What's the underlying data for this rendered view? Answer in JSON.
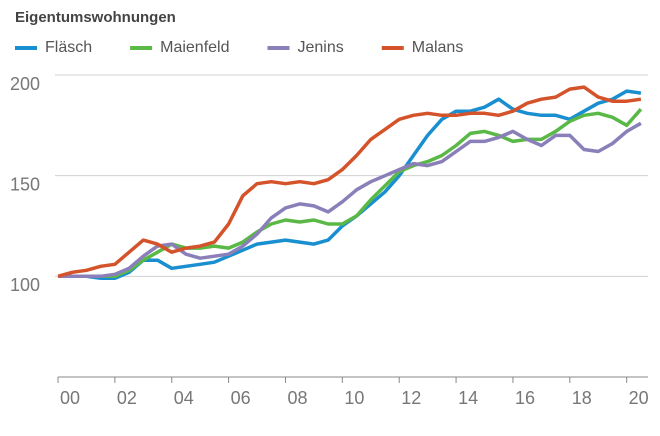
{
  "chart_data": {
    "type": "line",
    "title": "Eigentumswohnungen",
    "x": [
      2000,
      2000.5,
      2001,
      2001.5,
      2002,
      2002.5,
      2003,
      2003.5,
      2004,
      2004.5,
      2005,
      2005.5,
      2006,
      2006.5,
      2007,
      2007.5,
      2008,
      2008.5,
      2009,
      2009.5,
      2010,
      2010.5,
      2011,
      2011.5,
      2012,
      2012.5,
      2013,
      2013.5,
      2014,
      2014.5,
      2015,
      2015.5,
      2016,
      2016.5,
      2017,
      2017.5,
      2018,
      2018.5,
      2019,
      2019.5,
      2020,
      2020.5
    ],
    "series": [
      {
        "name": "Fläsch",
        "color": "#1a8fd0",
        "values": [
          100,
          100,
          100,
          99,
          99,
          102,
          108,
          108,
          104,
          105,
          106,
          107,
          110,
          113,
          116,
          117,
          118,
          117,
          116,
          118,
          125,
          130,
          136,
          142,
          150,
          160,
          170,
          178,
          182,
          182,
          184,
          188,
          183,
          181,
          180,
          180,
          178,
          182,
          186,
          188,
          192,
          191
        ]
      },
      {
        "name": "Maienfeld",
        "color": "#5ab946",
        "values": [
          100,
          100,
          100,
          100,
          100,
          103,
          108,
          112,
          116,
          114,
          114,
          115,
          114,
          117,
          122,
          126,
          128,
          127,
          128,
          126,
          126,
          130,
          138,
          145,
          152,
          155,
          157,
          160,
          165,
          171,
          172,
          170,
          167,
          168,
          168,
          172,
          177,
          180,
          181,
          179,
          175,
          183
        ]
      },
      {
        "name": "Jenins",
        "color": "#8a7fb8",
        "values": [
          100,
          100,
          100,
          100,
          101,
          104,
          110,
          115,
          116,
          111,
          109,
          110,
          111,
          115,
          121,
          129,
          134,
          136,
          135,
          132,
          137,
          143,
          147,
          150,
          153,
          156,
          155,
          157,
          162,
          167,
          167,
          169,
          172,
          168,
          165,
          170,
          170,
          163,
          162,
          166,
          172,
          176
        ]
      },
      {
        "name": "Malans",
        "color": "#d4532b",
        "values": [
          100,
          102,
          103,
          105,
          106,
          112,
          118,
          116,
          112,
          114,
          115,
          117,
          126,
          140,
          146,
          147,
          146,
          147,
          146,
          148,
          153,
          160,
          168,
          173,
          178,
          180,
          181,
          180,
          180,
          181,
          181,
          180,
          182,
          186,
          188,
          189,
          193,
          194,
          189,
          187,
          187,
          188
        ]
      }
    ],
    "xlim": [
      2000,
      2020.75
    ],
    "xticks": [
      {
        "value": 2000,
        "label": "00"
      },
      {
        "value": 2002,
        "label": "02"
      },
      {
        "value": 2004,
        "label": "04"
      },
      {
        "value": 2006,
        "label": "06"
      },
      {
        "value": 2008,
        "label": "08"
      },
      {
        "value": 2010,
        "label": "10"
      },
      {
        "value": 2012,
        "label": "12"
      },
      {
        "value": 2014,
        "label": "14"
      },
      {
        "value": 2016,
        "label": "16"
      },
      {
        "value": 2018,
        "label": "18"
      },
      {
        "value": 2020,
        "label": "20"
      }
    ],
    "ylim": [
      50,
      200
    ],
    "yticks": [
      100,
      150,
      200
    ],
    "grid": true
  }
}
